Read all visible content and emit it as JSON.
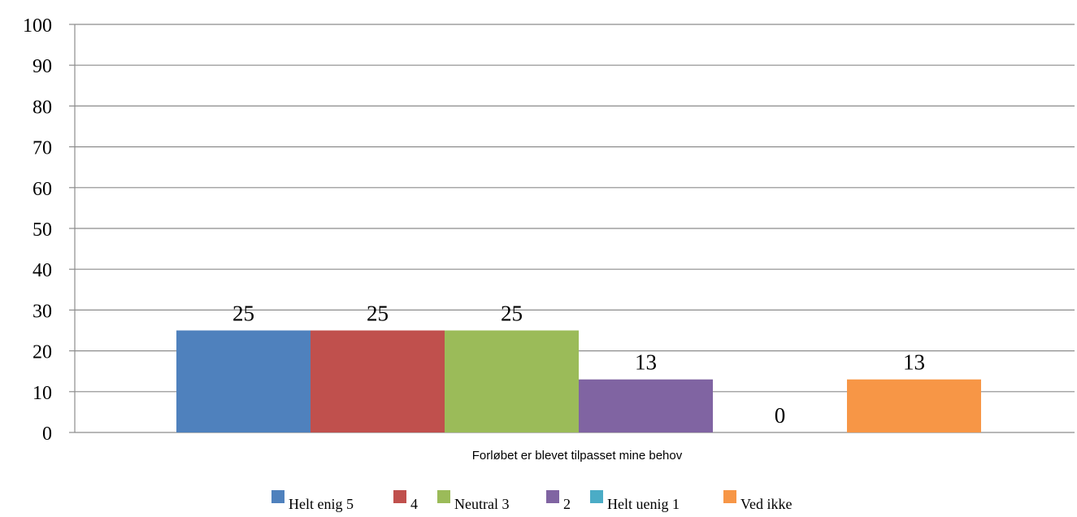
{
  "chart_data": {
    "type": "bar",
    "categories": [
      "Forløbet er blevet tilpasset mine behov"
    ],
    "series": [
      {
        "name": "Helt enig 5",
        "values": [
          25
        ],
        "color": "#4F81BD"
      },
      {
        "name": "4",
        "values": [
          25
        ],
        "color": "#C0504D"
      },
      {
        "name": "Neutral 3",
        "values": [
          25
        ],
        "color": "#9BBB59"
      },
      {
        "name": "2",
        "values": [
          13
        ],
        "color": "#8064A2"
      },
      {
        "name": "Helt uenig 1",
        "values": [
          0
        ],
        "color": "#4BACC6"
      },
      {
        "name": "Ved ikke",
        "values": [
          13
        ],
        "color": "#F79646"
      }
    ],
    "ylim": [
      0,
      100
    ],
    "yticks": [
      0,
      10,
      20,
      30,
      40,
      50,
      60,
      70,
      80,
      90,
      100
    ],
    "grid": true,
    "legend_position": "bottom"
  }
}
